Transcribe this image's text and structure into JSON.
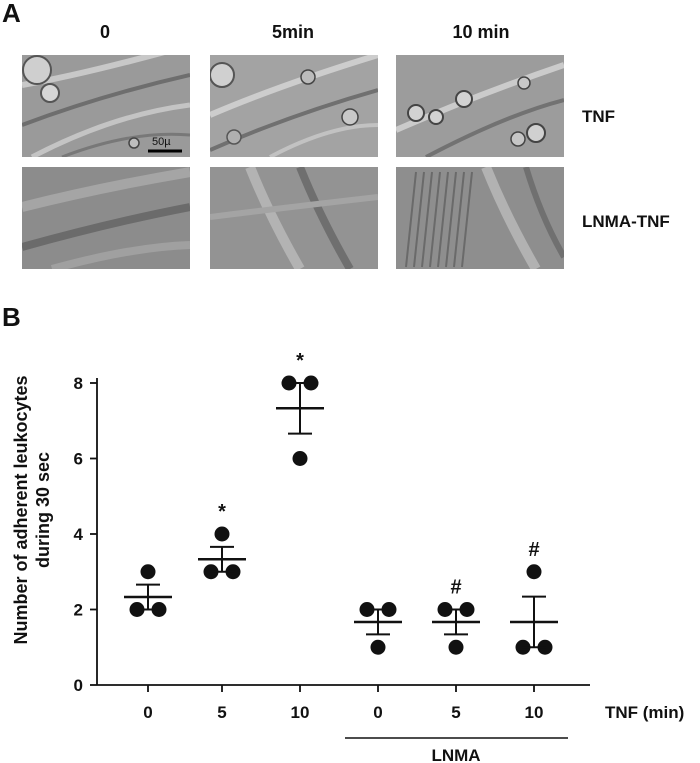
{
  "panel_a": {
    "letter": "A",
    "columns": [
      "0",
      "5min",
      "10 min"
    ],
    "rows": [
      "TNF",
      "LNMA-TNF"
    ],
    "scale_bar": "50µ"
  },
  "panel_b": {
    "letter": "B"
  },
  "chart_data": {
    "type": "scatter",
    "ylabel_line1": "Number of  adherent leukocytes",
    "ylabel_line2": "during 30 sec",
    "xlabel": "TNF (min)",
    "group_label": "LNMA",
    "categories": [
      "0",
      "5",
      "10",
      "0",
      "5",
      "10"
    ],
    "ylim": [
      0,
      8
    ],
    "yticks": [
      0,
      2,
      4,
      6,
      8
    ],
    "points": [
      [
        2,
        2,
        3
      ],
      [
        3,
        3,
        4
      ],
      [
        6,
        8,
        8
      ],
      [
        1,
        2,
        2
      ],
      [
        1,
        2,
        2
      ],
      [
        1,
        1,
        3
      ]
    ],
    "mean": [
      2.33,
      3.33,
      7.33,
      1.67,
      1.67,
      1.67
    ],
    "sem": [
      0.33,
      0.33,
      0.67,
      0.33,
      0.33,
      0.67
    ],
    "annotations": [
      "",
      "*",
      "*",
      "",
      "#",
      "#"
    ]
  }
}
